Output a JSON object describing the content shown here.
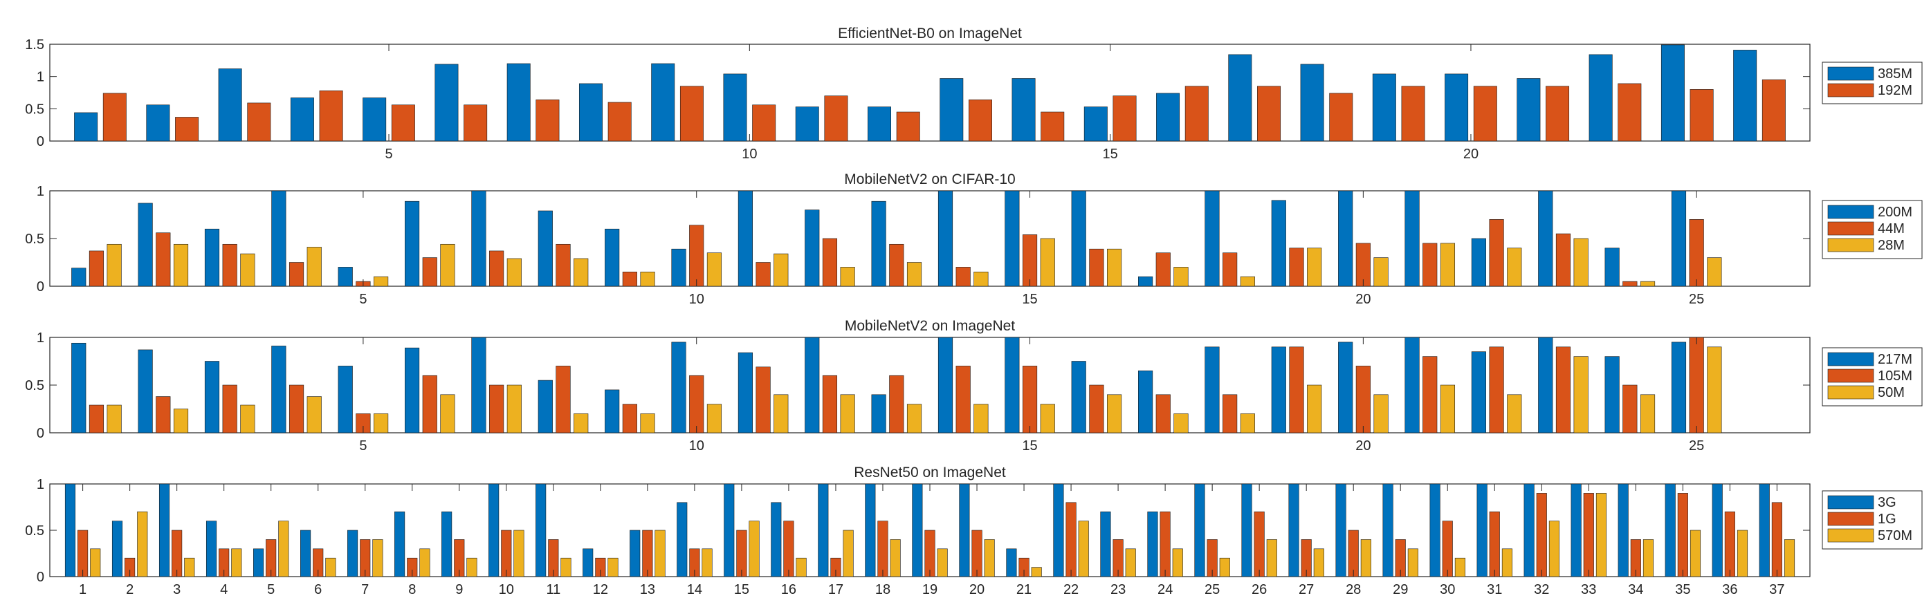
{
  "colors": {
    "series1": "#0072BD",
    "series2": "#D95319",
    "series3": "#EDB120",
    "axis": "#262626"
  },
  "chart_data": [
    {
      "type": "bar",
      "title": "EfficientNet-B0 on ImageNet",
      "xlim": [
        0.3,
        24.7
      ],
      "ylim": [
        0,
        1.5
      ],
      "yticks": [
        0,
        0.5,
        1,
        1.5
      ],
      "ytick_labels": [
        "0",
        "0.5",
        "1",
        "1.5"
      ],
      "xticks": [
        5,
        10,
        15,
        20
      ],
      "xtick_labels": [
        "5",
        "10",
        "15",
        "20"
      ],
      "legend_position": "right",
      "grid": false,
      "categories": [
        1,
        2,
        3,
        4,
        5,
        6,
        7,
        8,
        9,
        10,
        11,
        12,
        13,
        14,
        15,
        16,
        17,
        18,
        19,
        20,
        21,
        22,
        23,
        24
      ],
      "series": [
        {
          "name": "385M",
          "values": [
            0.44,
            0.56,
            1.12,
            0.67,
            0.67,
            1.19,
            1.2,
            0.89,
            1.2,
            1.04,
            0.53,
            0.53,
            0.97,
            0.97,
            0.53,
            0.74,
            1.34,
            1.19,
            1.04,
            1.04,
            0.97,
            1.34,
            1.49,
            1.41
          ]
        },
        {
          "name": "192M",
          "values": [
            0.74,
            0.37,
            0.59,
            0.78,
            0.56,
            0.56,
            0.64,
            0.6,
            0.85,
            0.56,
            0.7,
            0.45,
            0.64,
            0.45,
            0.7,
            0.85,
            0.85,
            0.74,
            0.85,
            0.85,
            0.85,
            0.89,
            0.8,
            0.95
          ]
        }
      ]
    },
    {
      "type": "bar",
      "title": "MobileNetV2 on CIFAR-10",
      "xlim": [
        0.3,
        26.7
      ],
      "ylim": [
        0,
        1
      ],
      "yticks": [
        0,
        0.5,
        1
      ],
      "ytick_labels": [
        "0",
        "0.5",
        "1"
      ],
      "xticks": [
        5,
        10,
        15,
        20,
        25
      ],
      "xtick_labels": [
        "5",
        "10",
        "15",
        "20",
        "25"
      ],
      "legend_position": "right",
      "grid": false,
      "categories": [
        1,
        2,
        3,
        4,
        5,
        6,
        7,
        8,
        9,
        10,
        11,
        12,
        13,
        14,
        15,
        16,
        17,
        18,
        19,
        20,
        21,
        22,
        23,
        24,
        25
      ],
      "series": [
        {
          "name": "200M",
          "values": [
            0.19,
            0.87,
            0.6,
            1.0,
            0.2,
            0.89,
            1.0,
            0.79,
            0.6,
            0.39,
            1.0,
            0.8,
            0.89,
            1.0,
            1.0,
            1.0,
            0.1,
            1.0,
            0.9,
            1.0,
            1.0,
            0.5,
            1.0,
            0.4,
            1.0
          ]
        },
        {
          "name": "44M",
          "values": [
            0.37,
            0.56,
            0.44,
            0.25,
            0.05,
            0.3,
            0.37,
            0.44,
            0.15,
            0.64,
            0.25,
            0.5,
            0.44,
            0.2,
            0.54,
            0.39,
            0.35,
            0.35,
            0.4,
            0.45,
            0.45,
            0.7,
            0.55,
            0.05,
            0.7
          ]
        },
        {
          "name": "28M",
          "values": [
            0.44,
            0.44,
            0.34,
            0.41,
            0.1,
            0.44,
            0.29,
            0.29,
            0.15,
            0.35,
            0.34,
            0.2,
            0.25,
            0.15,
            0.5,
            0.39,
            0.2,
            0.1,
            0.4,
            0.3,
            0.45,
            0.4,
            0.5,
            0.05,
            0.3
          ]
        }
      ]
    },
    {
      "type": "bar",
      "title": "MobileNetV2 on ImageNet",
      "xlim": [
        0.3,
        26.7
      ],
      "ylim": [
        0,
        1
      ],
      "yticks": [
        0,
        0.5,
        1
      ],
      "ytick_labels": [
        "0",
        "0.5",
        "1"
      ],
      "xticks": [
        5,
        10,
        15,
        20,
        25
      ],
      "xtick_labels": [
        "5",
        "10",
        "15",
        "20",
        "25"
      ],
      "legend_position": "right",
      "grid": false,
      "categories": [
        1,
        2,
        3,
        4,
        5,
        6,
        7,
        8,
        9,
        10,
        11,
        12,
        13,
        14,
        15,
        16,
        17,
        18,
        19,
        20,
        21,
        22,
        23,
        24,
        25
      ],
      "series": [
        {
          "name": "217M",
          "values": [
            0.94,
            0.87,
            0.75,
            0.91,
            0.7,
            0.89,
            1.0,
            0.55,
            0.45,
            0.95,
            0.84,
            1.0,
            0.4,
            1.0,
            1.0,
            0.75,
            0.65,
            0.9,
            0.9,
            0.95,
            1.0,
            0.85,
            1.0,
            0.8,
            0.95
          ]
        },
        {
          "name": "105M",
          "values": [
            0.29,
            0.38,
            0.5,
            0.5,
            0.2,
            0.6,
            0.5,
            0.7,
            0.3,
            0.6,
            0.69,
            0.6,
            0.6,
            0.7,
            0.7,
            0.5,
            0.4,
            0.4,
            0.9,
            0.7,
            0.8,
            0.9,
            0.9,
            0.5,
            1.0
          ]
        },
        {
          "name": "50M",
          "values": [
            0.29,
            0.25,
            0.29,
            0.38,
            0.2,
            0.4,
            0.5,
            0.2,
            0.2,
            0.3,
            0.4,
            0.4,
            0.3,
            0.3,
            0.3,
            0.4,
            0.2,
            0.2,
            0.5,
            0.4,
            0.5,
            0.4,
            0.8,
            0.4,
            0.9
          ]
        }
      ]
    },
    {
      "type": "bar",
      "title": "ResNet50 on ImageNet",
      "xlim": [
        0.3,
        37.7
      ],
      "ylim": [
        0,
        1
      ],
      "yticks": [
        0,
        0.5,
        1
      ],
      "ytick_labels": [
        "0",
        "0.5",
        "1"
      ],
      "xticks": [
        1,
        2,
        3,
        4,
        5,
        6,
        7,
        8,
        9,
        10,
        11,
        12,
        13,
        14,
        15,
        16,
        17,
        18,
        19,
        20,
        21,
        22,
        23,
        24,
        25,
        26,
        27,
        28,
        29,
        30,
        31,
        32,
        33,
        34,
        35,
        36,
        37
      ],
      "xtick_labels": [
        "1",
        "2",
        "3",
        "4",
        "5",
        "6",
        "7",
        "8",
        "9",
        "10",
        "11",
        "12",
        "13",
        "14",
        "15",
        "16",
        "17",
        "18",
        "19",
        "20",
        "21",
        "22",
        "23",
        "24",
        "25",
        "26",
        "27",
        "28",
        "29",
        "30",
        "31",
        "32",
        "33",
        "34",
        "35",
        "36",
        "37"
      ],
      "legend_position": "right",
      "grid": false,
      "categories": [
        1,
        2,
        3,
        4,
        5,
        6,
        7,
        8,
        9,
        10,
        11,
        12,
        13,
        14,
        15,
        16,
        17,
        18,
        19,
        20,
        21,
        22,
        23,
        24,
        25,
        26,
        27,
        28,
        29,
        30,
        31,
        32,
        33,
        34,
        35,
        36,
        37
      ],
      "series": [
        {
          "name": "3G",
          "values": [
            1.0,
            0.6,
            1.0,
            0.6,
            0.3,
            0.5,
            0.5,
            0.7,
            0.7,
            1.0,
            1.0,
            0.3,
            0.5,
            0.8,
            1.0,
            0.8,
            1.0,
            1.0,
            1.0,
            1.0,
            0.3,
            1.0,
            0.7,
            0.7,
            1.0,
            1.0,
            1.0,
            1.0,
            1.0,
            1.0,
            1.0,
            1.0,
            1.0,
            1.0,
            1.0,
            1.0,
            1.0
          ]
        },
        {
          "name": "1G",
          "values": [
            0.5,
            0.2,
            0.5,
            0.3,
            0.4,
            0.3,
            0.4,
            0.2,
            0.4,
            0.5,
            0.4,
            0.2,
            0.5,
            0.3,
            0.5,
            0.6,
            0.2,
            0.6,
            0.5,
            0.5,
            0.2,
            0.8,
            0.4,
            0.7,
            0.4,
            0.7,
            0.4,
            0.5,
            0.4,
            0.6,
            0.7,
            0.9,
            0.9,
            0.4,
            0.9,
            0.7,
            0.8
          ]
        },
        {
          "name": "570M",
          "values": [
            0.3,
            0.7,
            0.2,
            0.3,
            0.6,
            0.2,
            0.4,
            0.3,
            0.2,
            0.5,
            0.2,
            0.2,
            0.5,
            0.3,
            0.6,
            0.2,
            0.5,
            0.4,
            0.3,
            0.4,
            0.1,
            0.6,
            0.3,
            0.3,
            0.2,
            0.4,
            0.3,
            0.4,
            0.3,
            0.2,
            0.3,
            0.6,
            0.9,
            0.4,
            0.5,
            0.5,
            0.4
          ]
        }
      ]
    }
  ]
}
